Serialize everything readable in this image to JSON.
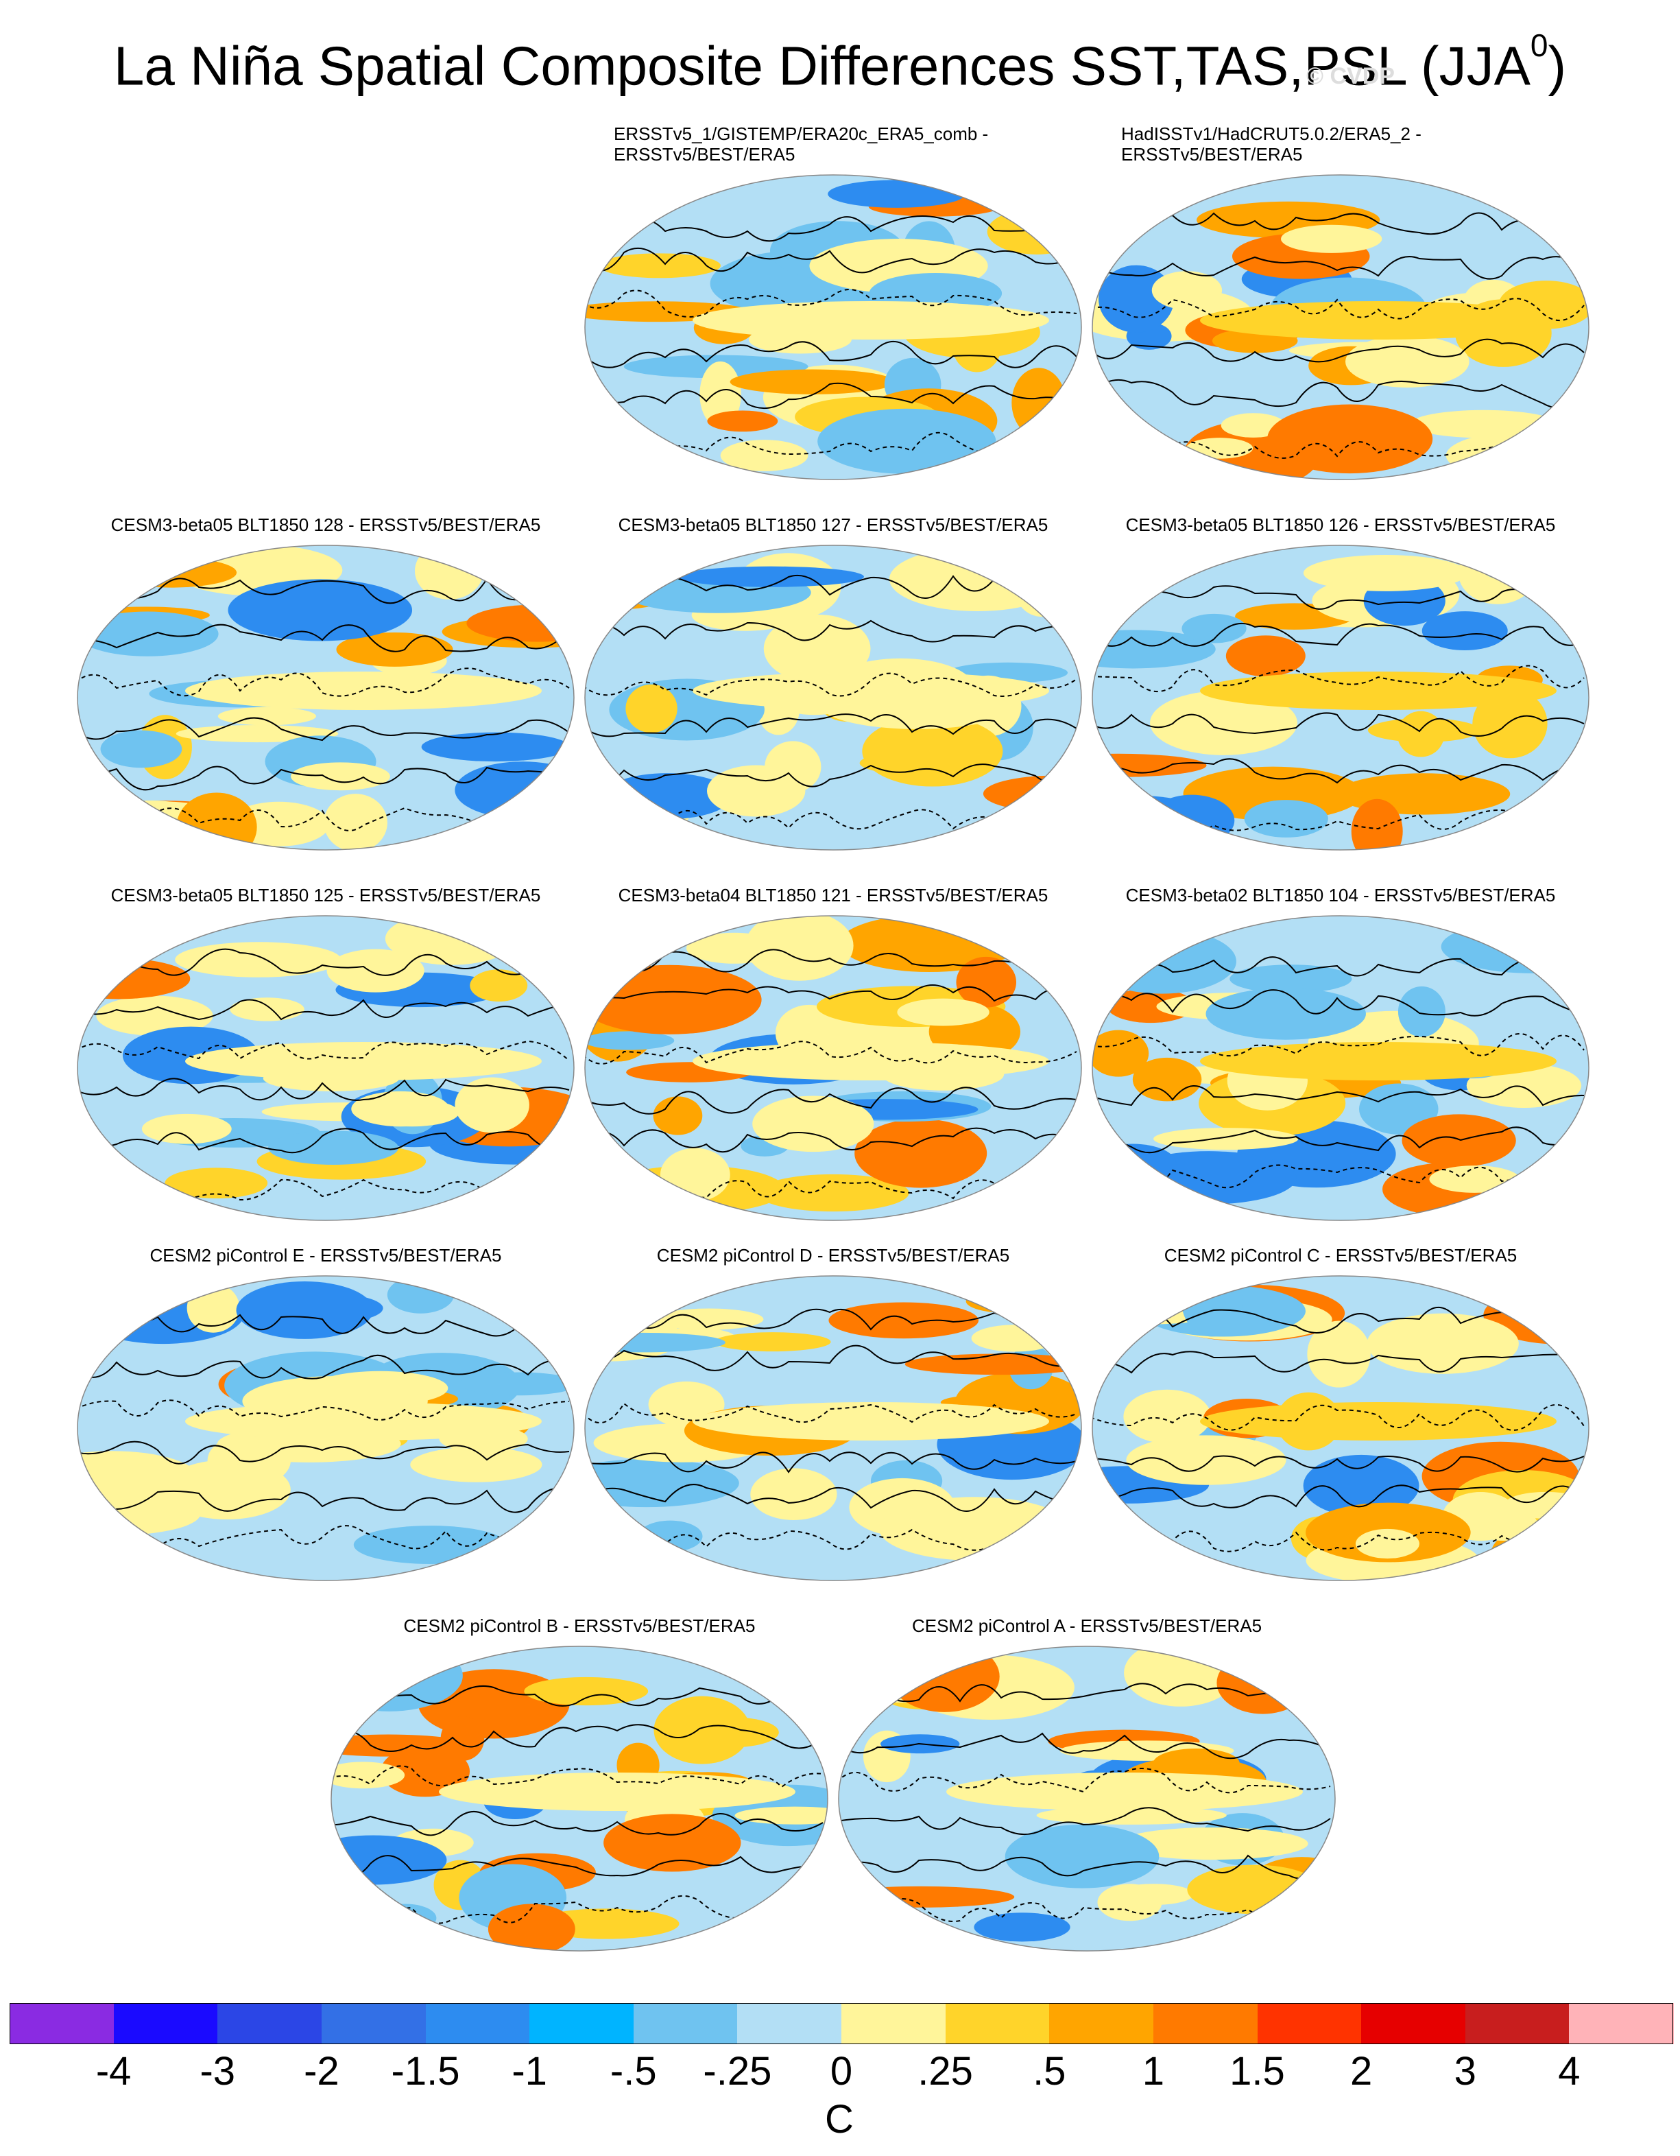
{
  "title_main": "La Niña Spatial Composite Differences SST,TAS,PSL (JJA",
  "title_sup": "0",
  "title_close": ")",
  "watermark": "© CVDP",
  "panels": [
    {
      "label": "ERSSTv5_1/GISTEMP/ERA20c_ERA5_comb -\nERSSTv5/BEST/ERA5",
      "two_line": true
    },
    {
      "label": "HadISSTv1/HadCRUT5.0.2/ERA5_2 -\nERSSTv5/BEST/ERA5",
      "two_line": true
    },
    {
      "label": "CESM3-beta05 BLT1850 128 - ERSSTv5/BEST/ERA5"
    },
    {
      "label": "CESM3-beta05 BLT1850 127 - ERSSTv5/BEST/ERA5"
    },
    {
      "label": "CESM3-beta05 BLT1850 126 - ERSSTv5/BEST/ERA5"
    },
    {
      "label": "CESM3-beta05 BLT1850 125 - ERSSTv5/BEST/ERA5"
    },
    {
      "label": "CESM3-beta04 BLT1850 121 - ERSSTv5/BEST/ERA5"
    },
    {
      "label": "CESM3-beta02 BLT1850 104 - ERSSTv5/BEST/ERA5"
    },
    {
      "label": "CESM2 piControl E - ERSSTv5/BEST/ERA5"
    },
    {
      "label": "CESM2 piControl D - ERSSTv5/BEST/ERA5"
    },
    {
      "label": "CESM2 piControl C - ERSSTv5/BEST/ERA5"
    },
    {
      "label": "CESM2 piControl B - ERSSTv5/BEST/ERA5"
    },
    {
      "label": "CESM2 piControl A - ERSSTv5/BEST/ERA5"
    }
  ],
  "colorbar": {
    "colors": [
      "#8a2be2",
      "#1a0aff",
      "#2b46e6",
      "#3370e6",
      "#2d8cf0",
      "#00b4ff",
      "#6fc3f0",
      "#b3dff5",
      "#fff59a",
      "#ffd42a",
      "#ffa500",
      "#ff7a00",
      "#ff3300",
      "#e60000",
      "#c81e1e",
      "#ffb3b8"
    ],
    "ticks": [
      "-4",
      "-3",
      "-2",
      "-1.5",
      "-1",
      "-.5",
      "-.25",
      "0",
      ".25",
      ".5",
      "1",
      "1.5",
      "2",
      "3",
      "4"
    ],
    "unit": "C"
  }
}
